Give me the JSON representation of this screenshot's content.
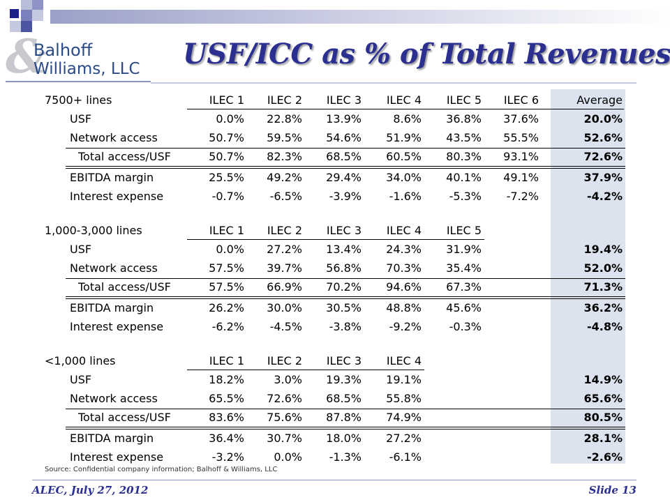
{
  "header": {
    "title": "USF/ICC as % of Total Revenues",
    "logo_line1": "Balhoff",
    "logo_line2": "Williams, LLC",
    "accent_color": "#2b2f8f"
  },
  "sections": [
    {
      "label": "7500+ lines",
      "columns": [
        "ILEC 1",
        "ILEC 2",
        "ILEC 3",
        "ILEC 4",
        "ILEC 5",
        "ILEC 6"
      ],
      "average_label": "Average",
      "rows": [
        {
          "label": "USF",
          "values": [
            "0.0%",
            "22.8%",
            "13.9%",
            "8.6%",
            "36.8%",
            "37.6%"
          ],
          "average": "20.0%"
        },
        {
          "label": "Network access",
          "values": [
            "50.7%",
            "59.5%",
            "54.6%",
            "51.9%",
            "43.5%",
            "55.5%"
          ],
          "average": "52.6%"
        },
        {
          "label": "Total access/USF",
          "values": [
            "50.7%",
            "82.3%",
            "68.5%",
            "60.5%",
            "80.3%",
            "93.1%"
          ],
          "average": "72.6%"
        },
        {
          "label": "EBITDA margin",
          "values": [
            "25.5%",
            "49.2%",
            "29.4%",
            "34.0%",
            "40.1%",
            "49.1%"
          ],
          "average": "37.9%"
        },
        {
          "label": "Interest expense",
          "values": [
            "-0.7%",
            "-6.5%",
            "-3.9%",
            "-1.6%",
            "-5.3%",
            "-7.2%"
          ],
          "average": "-4.2%"
        }
      ]
    },
    {
      "label": "1,000-3,000 lines",
      "columns": [
        "ILEC 1",
        "ILEC 2",
        "ILEC 3",
        "ILEC 4",
        "ILEC 5"
      ],
      "average_label": "",
      "rows": [
        {
          "label": "USF",
          "values": [
            "0.0%",
            "27.2%",
            "13.4%",
            "24.3%",
            "31.9%"
          ],
          "average": "19.4%"
        },
        {
          "label": "Network access",
          "values": [
            "57.5%",
            "39.7%",
            "56.8%",
            "70.3%",
            "35.4%"
          ],
          "average": "52.0%"
        },
        {
          "label": "Total access/USF",
          "values": [
            "57.5%",
            "66.9%",
            "70.2%",
            "94.6%",
            "67.3%"
          ],
          "average": "71.3%"
        },
        {
          "label": "EBITDA margin",
          "values": [
            "26.2%",
            "30.0%",
            "30.5%",
            "48.8%",
            "45.6%"
          ],
          "average": "36.2%"
        },
        {
          "label": "Interest expense",
          "values": [
            "-6.2%",
            "-4.5%",
            "-3.8%",
            "-9.2%",
            "-0.3%"
          ],
          "average": "-4.8%"
        }
      ]
    },
    {
      "label": "<1,000 lines",
      "columns": [
        "ILEC 1",
        "ILEC 2",
        "ILEC 3",
        "ILEC 4"
      ],
      "average_label": "",
      "rows": [
        {
          "label": "USF",
          "values": [
            "18.2%",
            "3.0%",
            "19.3%",
            "19.1%"
          ],
          "average": "14.9%"
        },
        {
          "label": "Network access",
          "values": [
            "65.5%",
            "72.6%",
            "68.5%",
            "55.8%"
          ],
          "average": "65.6%"
        },
        {
          "label": "Total access/USF",
          "values": [
            "83.6%",
            "75.6%",
            "87.8%",
            "74.9%"
          ],
          "average": "80.5%"
        },
        {
          "label": "EBITDA margin",
          "values": [
            "36.4%",
            "30.7%",
            "18.0%",
            "27.2%"
          ],
          "average": "28.1%"
        },
        {
          "label": "Interest expense",
          "values": [
            "-3.2%",
            "0.0%",
            "-1.3%",
            "-6.1%"
          ],
          "average": "-2.6%"
        }
      ]
    }
  ],
  "source_note": "Source:  Confidential company information;  Balhoff & Williams, LLC",
  "footer": {
    "left": "ALEC, July 27, 2012",
    "right": "Slide 13"
  }
}
